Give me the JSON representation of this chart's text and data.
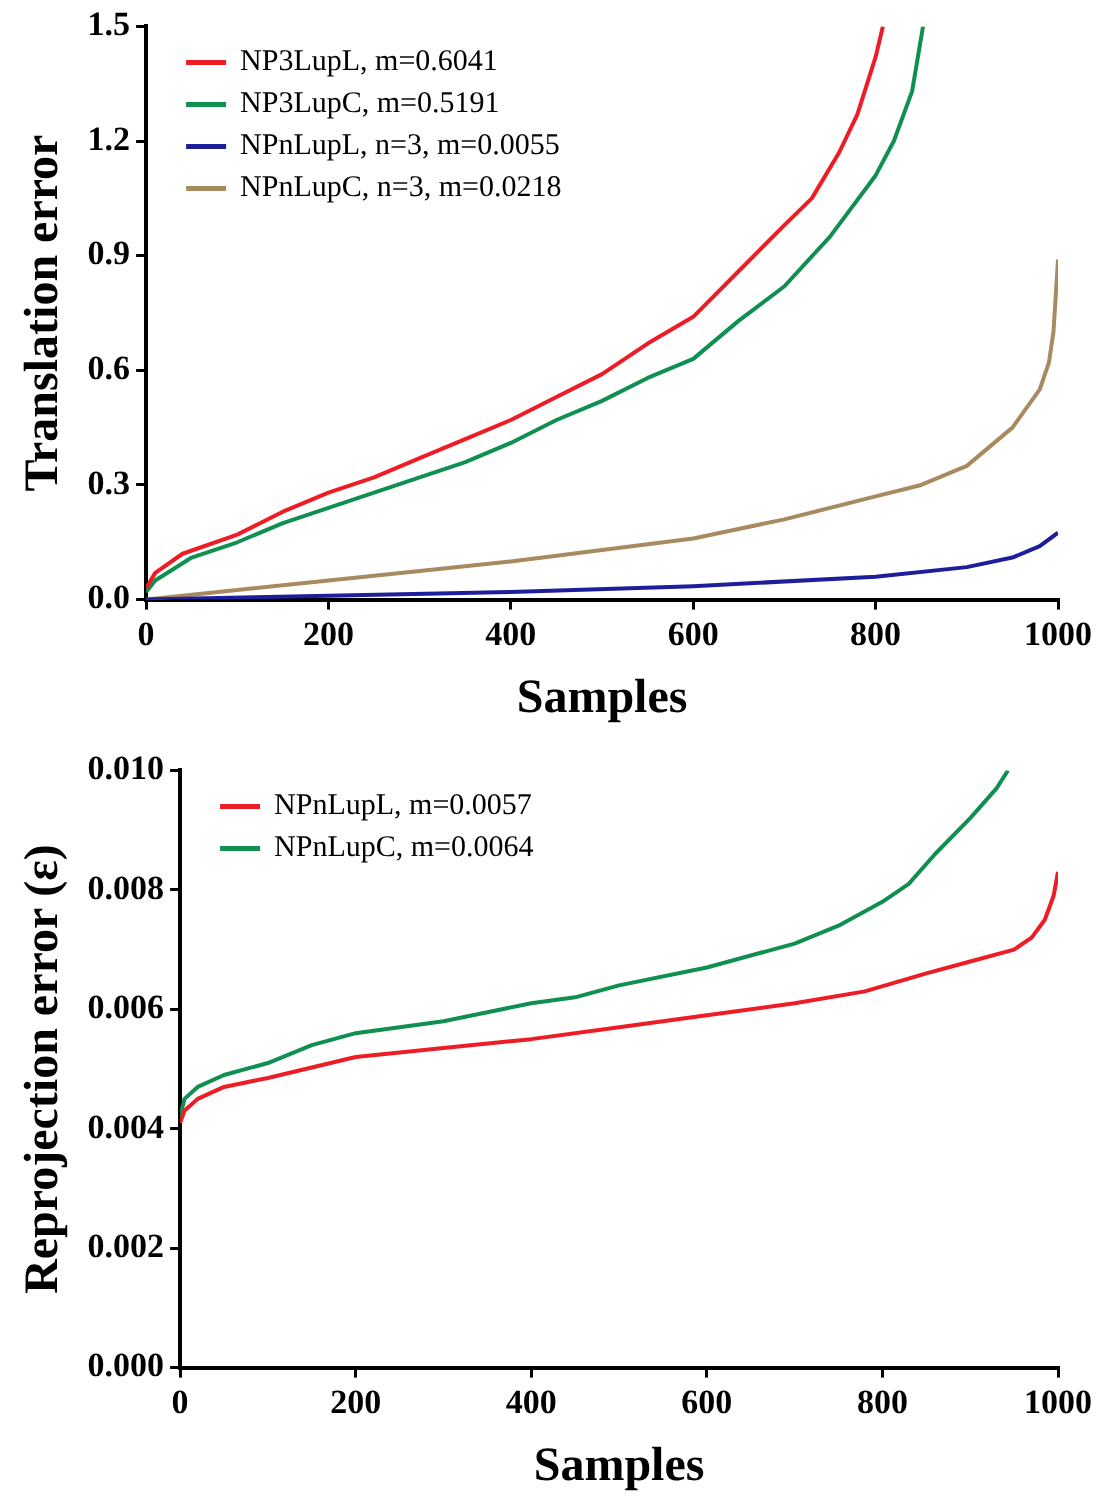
{
  "chart_data": [
    {
      "type": "line",
      "xlabel": "Samples",
      "ylabel": "Translation error",
      "xlim": [
        0,
        1000
      ],
      "xticks": [
        0,
        200,
        400,
        600,
        800,
        1000
      ],
      "ylim": [
        0,
        1.5
      ],
      "yticks": [
        {
          "value": 0,
          "label": "0.0"
        },
        0.3,
        0.6,
        0.9,
        1.2,
        1.5
      ],
      "legend": "top left",
      "grid": false,
      "series": [
        {
          "name": "NP3LupL, m=0.6041",
          "color": "#ee1c25",
          "x": [
            0,
            10,
            40,
            100,
            150,
            200,
            250,
            300,
            350,
            400,
            450,
            500,
            550,
            600,
            650,
            700,
            730,
            760,
            780,
            800,
            808
          ],
          "values": [
            0.03,
            0.07,
            0.12,
            0.17,
            0.23,
            0.28,
            0.32,
            0.37,
            0.42,
            0.47,
            0.53,
            0.59,
            0.67,
            0.74,
            0.86,
            0.98,
            1.05,
            1.17,
            1.27,
            1.42,
            1.5
          ]
        },
        {
          "name": "NP3LupC, m=0.5191",
          "color": "#109050",
          "x": [
            0,
            10,
            50,
            100,
            150,
            200,
            250,
            300,
            350,
            400,
            450,
            500,
            550,
            600,
            650,
            700,
            750,
            800,
            820,
            840,
            852
          ],
          "values": [
            0.02,
            0.05,
            0.11,
            0.15,
            0.2,
            0.24,
            0.28,
            0.32,
            0.36,
            0.41,
            0.47,
            0.52,
            0.58,
            0.63,
            0.73,
            0.82,
            0.95,
            1.11,
            1.2,
            1.33,
            1.5
          ]
        },
        {
          "name": "NPnLupL, n=3, m=0.0055",
          "color": "#1e1e9a",
          "x": [
            0,
            200,
            400,
            600,
            800,
            900,
            950,
            980,
            1000
          ],
          "values": [
            0,
            0.01,
            0.02,
            0.035,
            0.06,
            0.085,
            0.11,
            0.14,
            0.175
          ]
        },
        {
          "name": "NPnLupC, n=3, m=0.0218",
          "color": "#a88a60",
          "x": [
            0,
            100,
            200,
            300,
            400,
            500,
            600,
            700,
            800,
            850,
            900,
            950,
            980,
            990,
            995,
            1000
          ],
          "values": [
            0,
            0.025,
            0.05,
            0.075,
            0.1,
            0.13,
            0.16,
            0.21,
            0.27,
            0.3,
            0.35,
            0.45,
            0.55,
            0.62,
            0.7,
            0.89
          ]
        }
      ]
    },
    {
      "type": "line",
      "xlabel": "Samples",
      "ylabel": "Reprojection error (ε)",
      "xlim": [
        0,
        1000
      ],
      "xticks": [
        0,
        200,
        400,
        600,
        800,
        1000
      ],
      "ylim": [
        0,
        0.01
      ],
      "yticks": [
        {
          "value": 0,
          "label": "0.000"
        },
        {
          "value": 0.002,
          "label": "0.002"
        },
        {
          "value": 0.004,
          "label": "0.004"
        },
        {
          "value": 0.006,
          "label": "0.006"
        },
        {
          "value": 0.008,
          "label": "0.008"
        },
        {
          "value": 0.01,
          "label": "0.010"
        }
      ],
      "legend": "top left",
      "grid": false,
      "series": [
        {
          "name": "NPnLupL, m=0.0057",
          "color": "#ee1c25",
          "x": [
            0,
            5,
            20,
            50,
            100,
            200,
            300,
            400,
            500,
            600,
            700,
            780,
            850,
            900,
            950,
            970,
            985,
            995,
            1000
          ],
          "values": [
            0.0041,
            0.0043,
            0.0045,
            0.0047,
            0.00485,
            0.0052,
            0.00535,
            0.0055,
            0.0057,
            0.0059,
            0.0061,
            0.0063,
            0.0066,
            0.0068,
            0.007,
            0.0072,
            0.0075,
            0.0079,
            0.0083
          ]
        },
        {
          "name": "NPnLupC, m=0.0064",
          "color": "#109050",
          "x": [
            0,
            5,
            20,
            50,
            100,
            150,
            200,
            300,
            400,
            450,
            500,
            600,
            700,
            750,
            800,
            830,
            860,
            900,
            930,
            943
          ],
          "values": [
            0.0042,
            0.0045,
            0.0047,
            0.0049,
            0.0051,
            0.0054,
            0.0056,
            0.0058,
            0.0061,
            0.0062,
            0.0064,
            0.0067,
            0.0071,
            0.0074,
            0.0078,
            0.0081,
            0.0086,
            0.0092,
            0.0097,
            0.01
          ]
        }
      ]
    }
  ]
}
